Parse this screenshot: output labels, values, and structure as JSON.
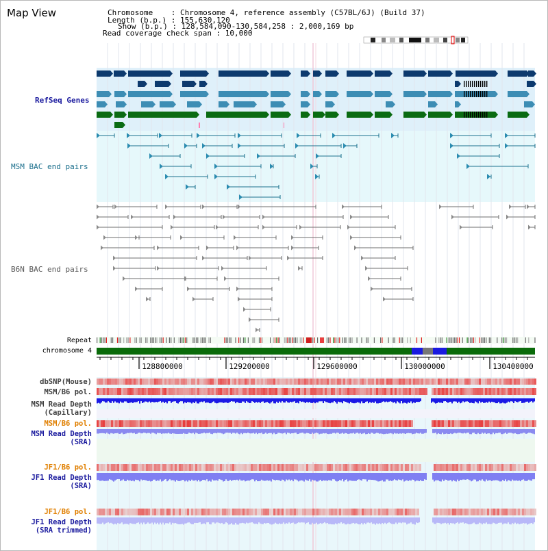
{
  "title": "Map View",
  "info": {
    "chromosome_line": "Chromosome    : Chromosome 4, reference assembly (C57BL/6J) (Build 37)",
    "length_line": "Length (b.p.) : 155,630,120",
    "show_line": "Show (b.p.) : 128,584,090-130,584,258 : 2,000,169 bp",
    "coverage_line": "Read coverage check span : 10,000"
  },
  "tracks": {
    "refseq": "RefSeq Genes",
    "msm_bac": "MSM BAC end pairs",
    "b6n_bac": "B6N BAC end pairs",
    "repeat": "Repeat",
    "chromosome": "chromosome 4",
    "dbsnp": "dbSNP(Mouse)",
    "msm_b6_pol": "MSM/B6 pol.",
    "msm_depth_cap_1": "MSM Read Depth",
    "msm_depth_cap_2": "(Capillary)",
    "msm_b6_pol2": "MSM/B6 pol.",
    "msm_depth_sra_1": "MSM Read Depth",
    "msm_depth_sra_2": "(SRA)",
    "jf1_b6_pol": "JF1/B6 pol.",
    "jf1_depth_sra_1": "JF1 Read Depth",
    "jf1_depth_sra_2": "(SRA)",
    "jf1_b6_pol2": "JF1/B6 pol.",
    "jf1_depth_trim_1": "JF1 Read Depth",
    "jf1_depth_trim_2": "(SRA trimmed)"
  },
  "axis_ticks": [
    "128800000",
    "129200000",
    "129600000",
    "130000000",
    "130400000"
  ],
  "colors": {
    "refseq_bg": "#dff0fa",
    "msm_bac_bg": "#e6f8fb",
    "b6n_bac_bg": "#ffffff",
    "gene_dark": "#0d3a6e",
    "gene_mid": "#3d8db4",
    "gene_green": "#0a6b12",
    "msm_line": "#1b6f8c",
    "b6n_line": "#6e6e6e",
    "depth_blue": "#1a1ae6",
    "depth_light": "#8a8af0",
    "pol_red": "#e8383c",
    "label_blue": "#1a1a9e",
    "label_orange": "#e07f00",
    "label_gray": "#404040"
  }
}
